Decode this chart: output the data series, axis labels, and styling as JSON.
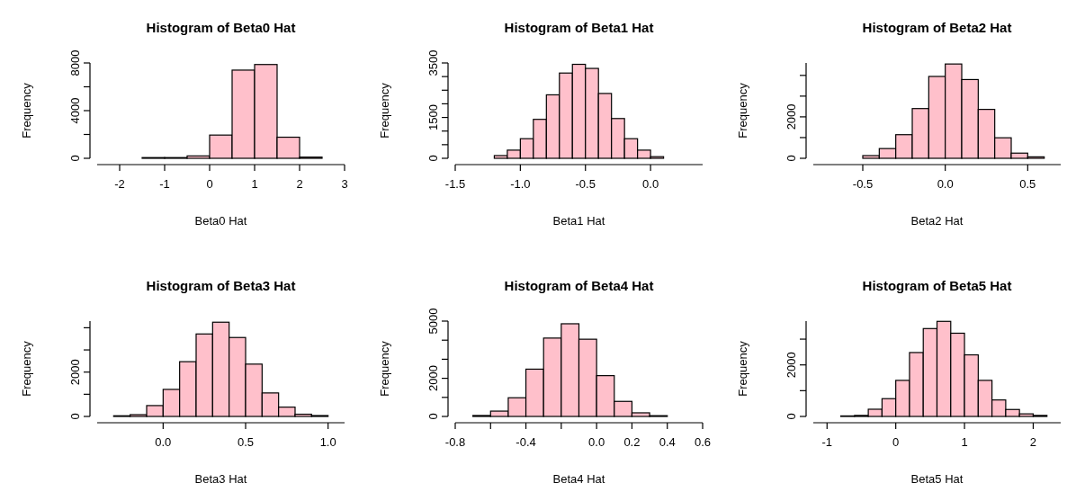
{
  "chart_data": [
    {
      "type": "histogram",
      "title": "Histogram of Beta0 Hat",
      "xlabel": "Beta0 Hat",
      "ylabel": "Frequency",
      "color": "#ffc0cb",
      "bins": [
        -2.5,
        -2,
        -1.5,
        -1,
        -0.5,
        0,
        0.5,
        1,
        1.5,
        2,
        2.5,
        3
      ],
      "values": [
        0,
        0,
        60,
        60,
        200,
        1950,
        7400,
        7870,
        1770,
        100,
        0
      ],
      "xlim": [
        -2.5,
        3
      ],
      "xticks": [
        -2,
        -1,
        0,
        1,
        2,
        3
      ],
      "ylim": [
        0,
        8000
      ],
      "yticks": [
        0,
        {
          "value": 2000,
          "label": null
        },
        4000,
        {
          "value": 6000,
          "label": null
        },
        8000
      ]
    },
    {
      "type": "histogram",
      "title": "Histogram of Beta1 Hat",
      "xlabel": "Beta1 Hat",
      "ylabel": "Frequency",
      "color": "#ffc0cb",
      "bins": [
        -1.5,
        -1.4,
        -1.3,
        -1.2,
        -1.1,
        -1.0,
        -0.9,
        -0.8,
        -0.7,
        -0.6,
        -0.5,
        -0.4,
        -0.3,
        -0.2,
        -0.1,
        0,
        0.1,
        0.2,
        0.3,
        0.4
      ],
      "values": [
        0,
        0,
        0,
        100,
        300,
        720,
        1430,
        2330,
        3130,
        3450,
        3300,
        2380,
        1460,
        720,
        300,
        60,
        0,
        0,
        0
      ],
      "xlim": [
        -1.5,
        0.4
      ],
      "xticks": [
        -1.5,
        {
          "value": -1,
          "label": "-1.0"
        },
        -0.5,
        {
          "value": 0,
          "label": "0.0"
        }
      ],
      "ylim": [
        0,
        3500
      ],
      "yticks": [
        0,
        {
          "value": 500,
          "label": null
        },
        {
          "value": 1000,
          "label": null
        },
        1500,
        {
          "value": 2000,
          "label": null
        },
        {
          "value": 2500,
          "label": null
        },
        {
          "value": 3000,
          "label": null
        },
        3500
      ]
    },
    {
      "type": "histogram",
      "title": "Histogram of Beta2 Hat",
      "xlabel": "Beta2 Hat",
      "ylabel": "Frequency",
      "color": "#ffc0cb",
      "bins": [
        -0.8,
        -0.7,
        -0.6,
        -0.5,
        -0.4,
        -0.3,
        -0.2,
        -0.1,
        0,
        0.1,
        0.2,
        0.3,
        0.4,
        0.5,
        0.6,
        0.7
      ],
      "values": [
        0,
        0,
        0,
        130,
        470,
        1140,
        2400,
        3950,
        4550,
        3800,
        2360,
        990,
        250,
        70,
        0
      ],
      "xlim": [
        -0.8,
        0.7
      ],
      "xticks": [
        -0.5,
        {
          "value": 0,
          "label": "0.0"
        },
        0.5
      ],
      "ylim": [
        0,
        4600
      ],
      "yticks": [
        0,
        {
          "value": 1000,
          "label": null
        },
        2000,
        {
          "value": 3000,
          "label": null
        },
        {
          "value": 4000,
          "label": null
        }
      ]
    },
    {
      "type": "histogram",
      "title": "Histogram of Beta3 Hat",
      "xlabel": "Beta3 Hat",
      "ylabel": "Frequency",
      "color": "#ffc0cb",
      "bins": [
        -0.4,
        -0.3,
        -0.2,
        -0.1,
        0,
        0.1,
        0.2,
        0.3,
        0.4,
        0.5,
        0.6,
        0.7,
        0.8,
        0.9,
        1.0,
        1.1
      ],
      "values": [
        0,
        30,
        80,
        490,
        1220,
        2470,
        3720,
        4250,
        3560,
        2360,
        1060,
        420,
        100,
        40,
        0
      ],
      "xlim": [
        -0.4,
        1.1
      ],
      "xticks": [
        {
          "value": 0,
          "label": "0.0"
        },
        0.5,
        {
          "value": 1,
          "label": "1.0"
        }
      ],
      "ylim": [
        0,
        4300
      ],
      "yticks": [
        0,
        {
          "value": 1000,
          "label": null
        },
        2000,
        {
          "value": 3000,
          "label": null
        },
        {
          "value": 4000,
          "label": null
        }
      ]
    },
    {
      "type": "histogram",
      "title": "Histogram of Beta4 Hat",
      "xlabel": "Beta4 Hat",
      "ylabel": "Frequency",
      "color": "#ffc0cb",
      "bins": [
        -0.8,
        -0.7,
        -0.6,
        -0.5,
        -0.4,
        -0.3,
        -0.2,
        -0.1,
        0,
        0.1,
        0.2,
        0.3,
        0.4,
        0.5,
        0.6
      ],
      "values": [
        0,
        50,
        280,
        980,
        2480,
        4110,
        4860,
        4050,
        2140,
        790,
        190,
        40,
        0,
        0
      ],
      "xlim": [
        -0.8,
        0.6
      ],
      "xticks": [
        -0.8,
        {
          "value": -0.6,
          "label": null
        },
        -0.4,
        {
          "value": -0.2,
          "label": null
        },
        {
          "value": 0,
          "label": "0.0"
        },
        0.2,
        0.4,
        0.6
      ],
      "ylim": [
        0,
        5000
      ],
      "yticks": [
        0,
        {
          "value": 1000,
          "label": null
        },
        2000,
        {
          "value": 3000,
          "label": null
        },
        {
          "value": 4000,
          "label": null
        },
        5000
      ]
    },
    {
      "type": "histogram",
      "title": "Histogram of Beta5 Hat",
      "xlabel": "Beta5 Hat",
      "ylabel": "Frequency",
      "color": "#ffc0cb",
      "bins": [
        -1.2,
        -1,
        -0.8,
        -0.6,
        -0.4,
        -0.2,
        0,
        0.2,
        0.4,
        0.6,
        0.8,
        1,
        1.2,
        1.4,
        1.6,
        1.8,
        2,
        2.2,
        2.4
      ],
      "values": [
        0,
        0,
        20,
        40,
        280,
        690,
        1400,
        2480,
        3410,
        3690,
        3230,
        2390,
        1400,
        640,
        270,
        100,
        40,
        0
      ],
      "xlim": [
        -1.2,
        2.4
      ],
      "xticks": [
        -1,
        0,
        1,
        2
      ],
      "ylim": [
        0,
        3700
      ],
      "yticks": [
        0,
        {
          "value": 1000,
          "label": null
        },
        2000,
        {
          "value": 3000,
          "label": null
        }
      ]
    }
  ]
}
